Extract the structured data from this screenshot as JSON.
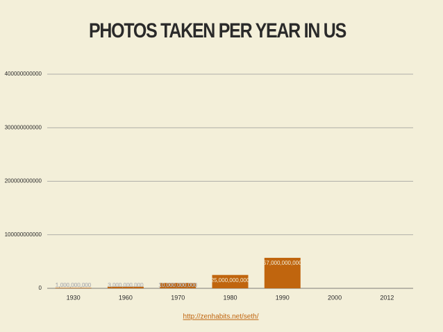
{
  "chart_data": {
    "type": "bar",
    "title": "PHOTOS TAKEN PER YEAR IN US",
    "categories": [
      "1930",
      "1960",
      "1970",
      "1980",
      "1990",
      "2000",
      "2012"
    ],
    "values": [
      1000000000,
      3000000000,
      10000000000,
      25000000000,
      57000000000,
      null,
      null
    ],
    "value_labels": [
      "1,000,000,000",
      "3,000,000,000",
      "10,000,000,000",
      "25,000,000,000",
      "57,000,000,000",
      null,
      null
    ],
    "color": "#c0650e",
    "ylim": [
      0,
      400000000000
    ],
    "yticks": [
      0,
      100000000000,
      200000000000,
      300000000000,
      400000000000
    ],
    "grid": true,
    "source": "http://zenhabits.net/seth/"
  }
}
